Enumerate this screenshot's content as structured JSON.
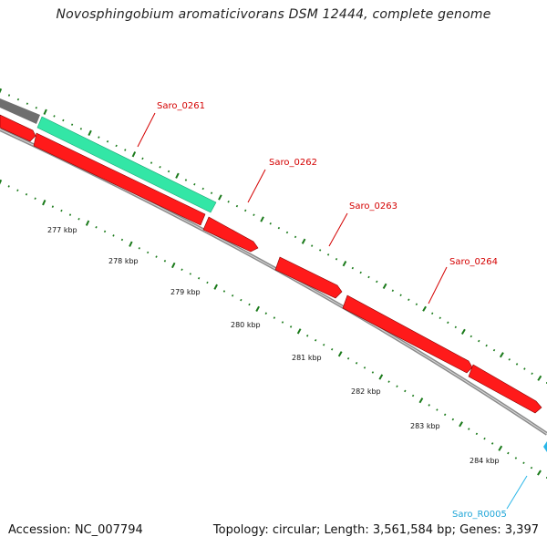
{
  "title": "Novosphingobium aromaticivorans DSM 12444, complete genome",
  "footer": {
    "accession": "Accession: NC_007794",
    "summary": "Topology: circular; Length: 3,561,584 bp; Genes: 3,397"
  },
  "colors": {
    "cds": "#ff0000",
    "cds_edge": "#8a0000",
    "rrna_or_misc": "#33e6a6",
    "trna": "#29b6e8",
    "backbone": "#8c8c8c",
    "ticks": "#1a7a1a",
    "label_red": "#d40000",
    "label_cyan": "#1fa6d8"
  },
  "gene_labels": [
    {
      "text": "Saro_0261"
    },
    {
      "text": "Saro_0262"
    },
    {
      "text": "Saro_0263"
    },
    {
      "text": "Saro_0264"
    },
    {
      "text": "Saro_R0005"
    }
  ],
  "kbp_labels": [
    "277 kbp",
    "278 kbp",
    "279 kbp",
    "280 kbp",
    "281 kbp",
    "282 kbp",
    "283 kbp",
    "284 kbp"
  ]
}
